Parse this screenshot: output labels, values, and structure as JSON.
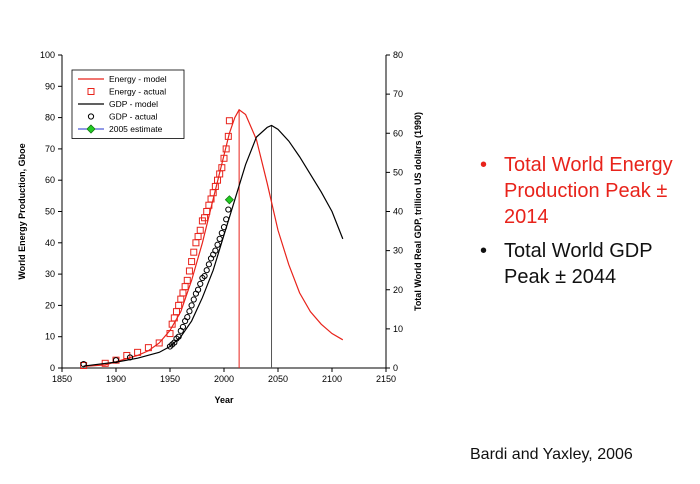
{
  "chart_data": {
    "type": "line",
    "xlabel": "Year",
    "ylabel": "World Energy Production, Gboe",
    "y2label": "Total World Real GDP, trillion US dollars (1990)",
    "xlim": [
      1850,
      2150
    ],
    "ylim": [
      0,
      100
    ],
    "y2lim": [
      0,
      80
    ],
    "xticks": [
      1850,
      1900,
      1950,
      2000,
      2050,
      2100,
      2150
    ],
    "yticks": [
      0,
      10,
      20,
      30,
      40,
      50,
      60,
      70,
      80,
      90,
      100
    ],
    "y2ticks": [
      0,
      10,
      20,
      30,
      40,
      50,
      60,
      70,
      80
    ],
    "legend_position": "top-left",
    "colors": {
      "energy": "#e8231b",
      "gdp": "#000000",
      "estimate_fill": "#22cc22",
      "estimate_line": "#2233cc"
    },
    "series": [
      {
        "name": "Energy - model",
        "kind": "line",
        "axis": "left",
        "x": [
          1870,
          1890,
          1900,
          1910,
          1920,
          1930,
          1940,
          1950,
          1960,
          1970,
          1980,
          1990,
          2000,
          2005,
          2010,
          2014,
          2020,
          2030,
          2040,
          2050,
          2060,
          2070,
          2080,
          2090,
          2100,
          2110
        ],
        "y": [
          0.5,
          1,
          2,
          3,
          4,
          5.5,
          8,
          12,
          18,
          28,
          40,
          54,
          68,
          75,
          80,
          82.5,
          81,
          73,
          59,
          44,
          33,
          24,
          18,
          14,
          11,
          9
        ]
      },
      {
        "name": "Energy - actual",
        "kind": "scatter",
        "marker": "square",
        "axis": "left",
        "x": [
          1870,
          1890,
          1900,
          1910,
          1920,
          1930,
          1940,
          1950,
          1952,
          1954,
          1956,
          1958,
          1960,
          1962,
          1964,
          1966,
          1968,
          1970,
          1972,
          1974,
          1976,
          1978,
          1980,
          1982,
          1984,
          1986,
          1988,
          1990,
          1992,
          1994,
          1996,
          1998,
          2000,
          2002,
          2004,
          2005
        ],
        "y": [
          0.8,
          1.5,
          2.5,
          4,
          5,
          6.5,
          8,
          11,
          14,
          16,
          18,
          20,
          22,
          24,
          26,
          28,
          31,
          34,
          37,
          40,
          42,
          44,
          47,
          48,
          50,
          52,
          54,
          56,
          58,
          60,
          62,
          64,
          67,
          70,
          74,
          79
        ]
      },
      {
        "name": "GDP - model",
        "kind": "line",
        "axis": "right",
        "x": [
          1870,
          1900,
          1920,
          1940,
          1950,
          1960,
          1970,
          1980,
          1990,
          2000,
          2010,
          2020,
          2030,
          2040,
          2044,
          2050,
          2060,
          2070,
          2080,
          2090,
          2100,
          2110
        ],
        "y": [
          0.5,
          1.5,
          2.5,
          4,
          5.5,
          8,
          12,
          18,
          25,
          34,
          43,
          52,
          59,
          61.5,
          62,
          61,
          58,
          54,
          49.5,
          45,
          40,
          33
        ]
      },
      {
        "name": "GDP - actual",
        "kind": "scatter",
        "marker": "circle",
        "axis": "right",
        "x": [
          1870,
          1900,
          1913,
          1950,
          1952,
          1954,
          1956,
          1958,
          1960,
          1962,
          1964,
          1966,
          1968,
          1970,
          1972,
          1974,
          1976,
          1978,
          1980,
          1982,
          1984,
          1986,
          1988,
          1990,
          1992,
          1994,
          1996,
          1998,
          2000,
          2002,
          2004
        ],
        "y": [
          1,
          2,
          2.7,
          5.5,
          6,
          6.5,
          7.5,
          8,
          9.5,
          10.5,
          12,
          13,
          14.5,
          16,
          17.5,
          19,
          20,
          21.5,
          23,
          23.5,
          25,
          26.5,
          28,
          29,
          30,
          31.5,
          33,
          34.5,
          36,
          38,
          40.5
        ]
      },
      {
        "name": "2005 estimate",
        "kind": "scatter",
        "marker": "diamond",
        "axis": "right",
        "x": [
          2005
        ],
        "y": [
          43
        ]
      }
    ],
    "peak_lines": [
      {
        "x": 2014,
        "color": "#e8231b"
      },
      {
        "x": 2044,
        "color": "#555555"
      }
    ]
  },
  "bullets": [
    {
      "text": "Total World Energy Production Peak ± 2014",
      "color": "#e8231b"
    },
    {
      "text": "Total World GDP Peak ± 2044",
      "color": "#111111"
    }
  ],
  "source": "Bardi and Yaxley, 2006"
}
